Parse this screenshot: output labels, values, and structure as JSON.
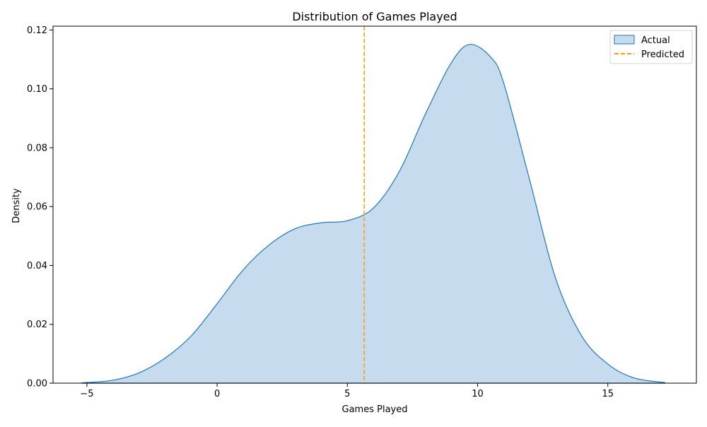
{
  "chart_data": {
    "type": "area",
    "title": "Distribution of Games Played",
    "xlabel": "Games Played",
    "ylabel": "Density",
    "xlim": [
      -6.3,
      18.4
    ],
    "ylim": [
      0.0,
      0.1213
    ],
    "xticks": [
      -5,
      0,
      5,
      10,
      15
    ],
    "xtick_labels": [
      "−5",
      "0",
      "5",
      "10",
      "15"
    ],
    "yticks": [
      0.0,
      0.02,
      0.04,
      0.06,
      0.08,
      0.1,
      0.12
    ],
    "ytick_labels": [
      "0.00",
      "0.02",
      "0.04",
      "0.06",
      "0.08",
      "0.10",
      "0.12"
    ],
    "grid": false,
    "legend_position": "top-right",
    "series": [
      {
        "name": "Actual",
        "kind": "kde-area",
        "color": "#1f77b4",
        "fill": "#c6dcee",
        "x": [
          -5.2,
          -4.0,
          -3.0,
          -2.0,
          -1.0,
          0.0,
          1.0,
          2.0,
          3.0,
          4.0,
          5.0,
          6.0,
          7.0,
          8.0,
          9.0,
          9.7,
          10.5,
          11.0,
          12.0,
          13.0,
          14.0,
          15.0,
          16.0,
          17.2
        ],
        "y": [
          0.0001,
          0.001,
          0.0035,
          0.0085,
          0.016,
          0.027,
          0.0385,
          0.047,
          0.0525,
          0.0545,
          0.0552,
          0.0595,
          0.072,
          0.0915,
          0.109,
          0.1151,
          0.1108,
          0.102,
          0.069,
          0.0355,
          0.016,
          0.0065,
          0.0018,
          0.0002
        ]
      },
      {
        "name": "Predicted",
        "kind": "vline",
        "color": "#ff9f0f",
        "x": 5.65
      }
    ]
  }
}
